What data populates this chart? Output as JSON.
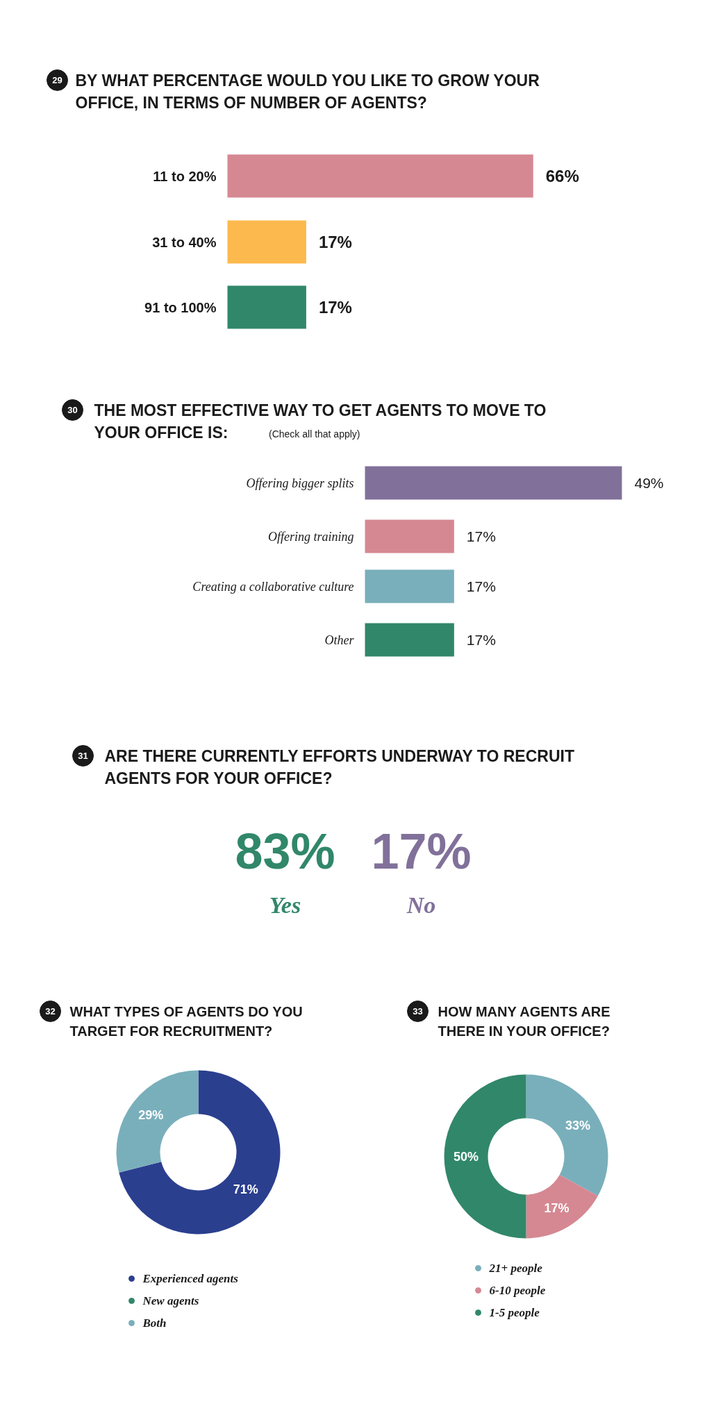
{
  "chart_data": [
    {
      "type": "bar",
      "orientation": "horizontal",
      "title": "BY WHAT PERCENTAGE WOULD YOU LIKE TO GROW YOUR OFFICE, IN TERMS OF NUMBER OF AGENTS?",
      "annotations": [
        "29"
      ],
      "categories": [
        "11 to 20%",
        "31 to 40%",
        "91 to 100%"
      ],
      "values": [
        66,
        17,
        17
      ],
      "colors": [
        "#d58892",
        "#fcb94d",
        "#31876a"
      ],
      "value_labels": [
        "66%",
        "17%",
        "17%"
      ]
    },
    {
      "type": "bar",
      "orientation": "horizontal",
      "title": "THE MOST EFFECTIVE WAY TO GET AGENTS TO MOVE TO YOUR OFFICE IS:",
      "subtitle": "(Check all that apply)",
      "annotations": [
        "30"
      ],
      "categories": [
        "Offering bigger splits",
        "Offering training",
        "Creating a collaborative culture",
        "Other"
      ],
      "values": [
        49,
        17,
        17,
        17
      ],
      "colors": [
        "#81719a",
        "#d58892",
        "#79afbb",
        "#31876a"
      ],
      "value_labels": [
        "49%",
        "17%",
        "17%",
        "17%"
      ]
    },
    {
      "type": "other",
      "title": "ARE THERE CURRENTLY EFFORTS UNDERWAY TO RECRUIT AGENTS FOR YOUR OFFICE?",
      "annotations": [
        "31"
      ],
      "categories": [
        "Yes",
        "No"
      ],
      "values": [
        83,
        17
      ],
      "colors": [
        "#31876a",
        "#81719a"
      ],
      "value_labels": [
        "83%",
        "17%"
      ]
    },
    {
      "type": "donut",
      "title": "WHAT TYPES OF AGENTS DO YOU TARGET FOR RECRUITMENT?",
      "annotations": [
        "32"
      ],
      "categories": [
        "Experienced agents",
        "New agents",
        "Both"
      ],
      "values": [
        71,
        null,
        29
      ],
      "colors": [
        "#2b3f8f",
        "#31876a",
        "#79afbb"
      ],
      "value_labels": [
        "71%",
        null,
        "29%"
      ],
      "legend": "bottom"
    },
    {
      "type": "donut",
      "title": "HOW MANY AGENTS ARE THERE IN YOUR OFFICE?",
      "annotations": [
        "33"
      ],
      "categories": [
        "21+ people",
        "6-10 people",
        "1-5 people"
      ],
      "values": [
        33,
        17,
        50
      ],
      "colors": [
        "#79afbb",
        "#d58892",
        "#31876a"
      ],
      "value_labels": [
        "33%",
        "17%",
        "50%"
      ],
      "legend": "bottom"
    }
  ]
}
